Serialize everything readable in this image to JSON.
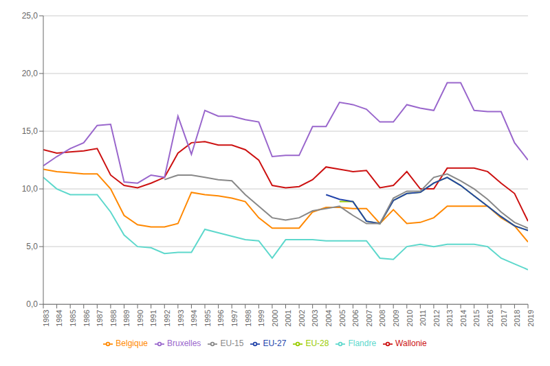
{
  "chart_data": {
    "type": "line",
    "x": [
      1983,
      1984,
      1985,
      1986,
      1987,
      1988,
      1989,
      1990,
      1991,
      1992,
      1993,
      1994,
      1995,
      1996,
      1997,
      1998,
      1999,
      2000,
      2001,
      2002,
      2003,
      2004,
      2005,
      2006,
      2007,
      2008,
      2009,
      2010,
      2011,
      2012,
      2013,
      2014,
      2015,
      2016,
      2017,
      2018,
      2019
    ],
    "xlim": [
      1983,
      2019
    ],
    "xticks": [
      1983,
      1984,
      1985,
      1986,
      1987,
      1988,
      1989,
      1990,
      1991,
      1992,
      1993,
      1994,
      1995,
      1996,
      1997,
      1998,
      1999,
      2000,
      2001,
      2002,
      2003,
      2004,
      2005,
      2006,
      2007,
      2008,
      2009,
      2010,
      2011,
      2012,
      2013,
      2014,
      2015,
      2016,
      2017,
      2018,
      2019
    ],
    "ylim": [
      0,
      25
    ],
    "yticks": [
      {
        "value": 0,
        "label": "0,0"
      },
      {
        "value": 5,
        "label": "5,0"
      },
      {
        "value": 10,
        "label": "10,0"
      },
      {
        "value": 15,
        "label": "15,0"
      },
      {
        "value": 20,
        "label": "20,0"
      },
      {
        "value": 25,
        "label": "25,0"
      }
    ],
    "grid": true,
    "legend": "bottom",
    "series": [
      {
        "name": "Flandre",
        "color": "#5dd8cc",
        "values": [
          11.0,
          10.0,
          9.5,
          9.5,
          9.5,
          8.0,
          6.0,
          5.0,
          4.9,
          4.4,
          4.5,
          4.5,
          6.5,
          6.2,
          5.9,
          5.6,
          5.5,
          4.0,
          5.6,
          5.6,
          5.6,
          5.5,
          5.5,
          5.5,
          5.5,
          4.0,
          3.9,
          5.0,
          5.2,
          5.0,
          5.2,
          5.2,
          5.2,
          5.0,
          4.0,
          3.5,
          3.0
        ]
      },
      {
        "name": "Wallonie",
        "color": "#cc1111",
        "values": [
          13.4,
          13.1,
          13.2,
          13.3,
          13.5,
          11.2,
          10.3,
          10.1,
          10.5,
          11.0,
          13.1,
          14.0,
          14.1,
          13.8,
          13.8,
          13.4,
          12.5,
          10.3,
          10.1,
          10.2,
          10.8,
          11.9,
          11.7,
          11.5,
          11.6,
          10.1,
          10.3,
          11.5,
          10.0,
          10.0,
          11.8,
          11.8,
          11.8,
          11.5,
          10.5,
          9.6,
          7.2
        ]
      },
      {
        "name": "Bruxelles",
        "color": "#9966cc",
        "values": [
          12.0,
          12.8,
          13.5,
          14.0,
          15.5,
          15.6,
          10.6,
          10.5,
          11.2,
          11.0,
          16.3,
          13.0,
          16.8,
          16.3,
          16.3,
          16.0,
          15.8,
          12.8,
          12.9,
          12.9,
          15.4,
          15.4,
          17.5,
          17.3,
          16.9,
          15.8,
          15.8,
          17.3,
          17.0,
          16.8,
          19.2,
          19.2,
          16.8,
          16.7,
          16.7,
          14.0,
          12.5
        ]
      },
      {
        "name": "Belgique",
        "color": "#ff8800",
        "values": [
          11.7,
          11.5,
          11.4,
          11.3,
          11.3,
          10.0,
          7.7,
          6.9,
          6.7,
          6.7,
          7.0,
          9.7,
          9.5,
          9.4,
          9.2,
          8.9,
          7.5,
          6.6,
          6.6,
          6.6,
          8.0,
          8.4,
          8.4,
          8.3,
          8.3,
          7.0,
          8.2,
          7.0,
          7.1,
          7.5,
          8.5,
          8.5,
          8.5,
          8.5,
          7.5,
          6.8,
          5.4
        ]
      },
      {
        "name": "EU-28",
        "color": "#99cc00",
        "values": [
          null,
          null,
          null,
          null,
          null,
          null,
          null,
          null,
          null,
          null,
          null,
          null,
          null,
          null,
          null,
          null,
          null,
          null,
          null,
          null,
          null,
          null,
          8.9,
          8.9,
          7.2,
          7.0,
          9.0,
          9.6,
          9.7,
          10.5,
          11.0,
          10.3,
          9.4,
          8.5,
          7.6,
          6.8,
          6.4
        ]
      },
      {
        "name": "EU-27",
        "color": "#2244aa",
        "values": [
          null,
          null,
          null,
          null,
          null,
          null,
          null,
          null,
          null,
          null,
          null,
          null,
          null,
          null,
          null,
          null,
          null,
          null,
          null,
          null,
          null,
          9.5,
          9.1,
          8.9,
          7.2,
          7.0,
          9.0,
          9.6,
          9.7,
          10.5,
          11.0,
          10.3,
          9.4,
          8.5,
          7.6,
          6.8,
          6.4
        ]
      },
      {
        "name": "EU-15",
        "color": "#888888",
        "values": [
          null,
          null,
          null,
          null,
          null,
          null,
          null,
          null,
          null,
          10.8,
          11.2,
          11.2,
          11.0,
          10.8,
          10.7,
          9.5,
          8.5,
          7.5,
          7.3,
          7.5,
          8.1,
          8.3,
          8.5,
          7.7,
          7.0,
          7.0,
          9.2,
          9.8,
          9.8,
          11.0,
          11.3,
          10.7,
          10.0,
          9.1,
          8.0,
          7.1,
          6.6
        ]
      }
    ]
  }
}
